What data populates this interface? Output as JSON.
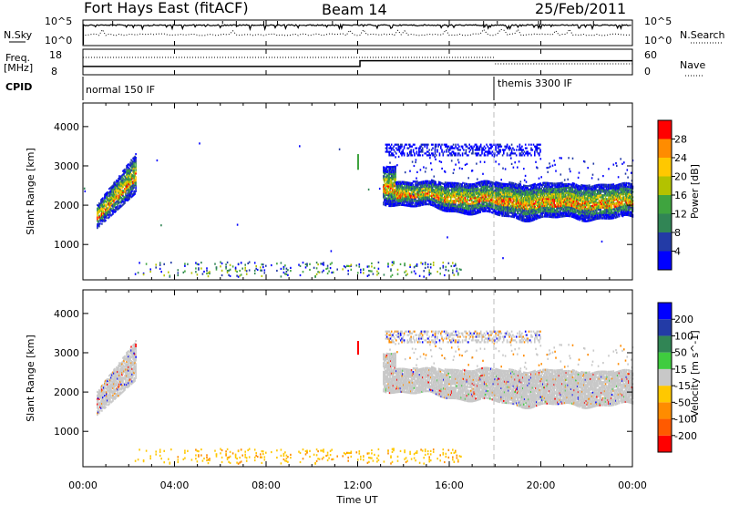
{
  "header": {
    "radar": "Fort Hays East (fitACF)",
    "beam": "Beam 14",
    "date": "25/Feb/2011"
  },
  "chart_data": [
    {
      "type": "line",
      "name": "summary-nsky-nsearch",
      "left_label": "N.Sky",
      "right_label": "N.Search",
      "left_ticks": [
        "10^5",
        "10^0"
      ],
      "right_ticks": [
        "10^5",
        "10^0"
      ],
      "xlim": [
        0,
        24
      ]
    },
    {
      "type": "line",
      "name": "summary-freq-nave",
      "left_label": "Freq.",
      "left_unit": "[MHz]",
      "right_label": "Nave",
      "left_ticks": [
        "18",
        "8"
      ],
      "right_ticks": [
        "60",
        "0"
      ],
      "freq_steps": [
        {
          "from": 0,
          "to": 12.1,
          "value": 10.9
        },
        {
          "from": 12.1,
          "to": 24,
          "value": 13.6
        }
      ],
      "xlim": [
        0,
        24
      ]
    },
    {
      "type": "table",
      "name": "cpid-strip",
      "label": "CPID",
      "segments": [
        {
          "start": 0,
          "label": "normal 150 IF"
        },
        {
          "start": 18.0,
          "label": "themis 3300 IF"
        }
      ]
    },
    {
      "type": "heatmap",
      "name": "power-panel",
      "parameter": "Power",
      "ylabel": "Slant Range [km]",
      "yticks": [
        1000,
        2000,
        3000,
        4000
      ],
      "ylim": [
        100,
        4600
      ],
      "xlim": [
        0,
        24
      ],
      "colorbar_label": "Power [dB]",
      "colorbar_ticks": [
        4,
        8,
        12,
        16,
        20,
        24,
        28
      ],
      "colorbar_colors": [
        "#0000ff",
        "#233ba6",
        "#318555",
        "#3fa43f",
        "#b3c200",
        "#ffc800",
        "#ff8c00",
        "#ff0000"
      ],
      "regions": [
        {
          "t0": 0.6,
          "t1": 2.3,
          "r_low_start": 1400,
          "r_low_end": 2300,
          "r_high_start": 2000,
          "r_high_end": 3300,
          "core": "#ff8c00"
        },
        {
          "t0": 13.1,
          "t1": 24.0,
          "r_low_start": 2050,
          "r_low_end": 1650,
          "r_high_start": 2600,
          "r_high_end": 2500,
          "core": "#ff8c00"
        },
        {
          "t0": 13.2,
          "t1": 20.0,
          "r_low_start": 3250,
          "r_low_end": 3250,
          "r_high_start": 3550,
          "r_high_end": 3550,
          "core": "#0000ff"
        }
      ]
    },
    {
      "type": "heatmap",
      "name": "velocity-panel",
      "parameter": "Velocity",
      "ylabel": "Slant Range [km]",
      "yticks": [
        1000,
        2000,
        3000,
        4000
      ],
      "ylim": [
        100,
        4600
      ],
      "xlabel": "Time UT",
      "xticks": [
        "00:00",
        "04:00",
        "08:00",
        "12:00",
        "16:00",
        "20:00",
        "00:00"
      ],
      "xlim": [
        0,
        24
      ],
      "colorbar_label": "Velocity [m s^-1]",
      "colorbar_ticks": [
        "200",
        "100",
        "50",
        "15",
        "-15",
        "-50",
        "-100",
        "-200"
      ],
      "colorbar_colors": [
        "#0000ff",
        "#233ba6",
        "#318555",
        "#3fcc3f",
        "#c8c8c8",
        "#ffc800",
        "#ff8c00",
        "#ff5a00",
        "#ff0000"
      ]
    }
  ]
}
